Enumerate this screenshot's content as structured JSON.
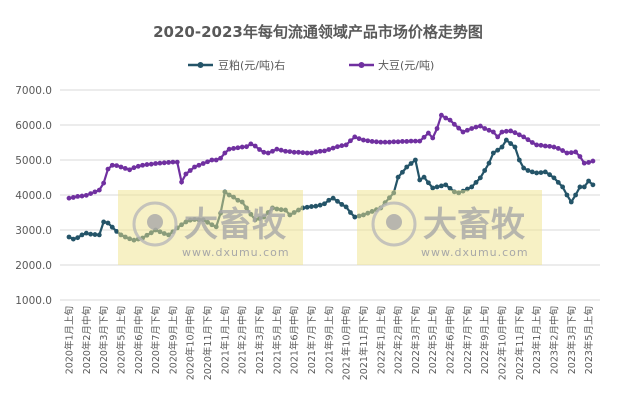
{
  "chart_data": {
    "type": "line",
    "title": "2020-2023年每旬流通领域产品市场价格走势图",
    "ylim": [
      1000,
      7000
    ],
    "y_ticks": [
      "1000.0",
      "2000.0",
      "3000.0",
      "4000.0",
      "5000.0",
      "6000.0",
      "7000.0"
    ],
    "y_tick_values": [
      1000,
      2000,
      3000,
      4000,
      5000,
      6000,
      7000
    ],
    "grid": true,
    "legend_position": "top",
    "x_tick_labels": [
      "2020年1月上旬",
      "2020年2月中旬",
      "2020年3月下旬",
      "2020年5月上旬",
      "2020年6月中旬",
      "2020年7月下旬",
      "2020年9月上旬",
      "2020年10月中旬",
      "2020年11月下旬",
      "2021年1月上旬",
      "2021年2月中旬",
      "2021年3月下旬",
      "2021年5月上旬",
      "2021年6月中旬",
      "2021年7月下旬",
      "2021年9月上旬",
      "2021年10月中旬",
      "2021年11月下旬",
      "2022年1月上旬",
      "2022年2月中旬",
      "2022年3月下旬",
      "2022年5月上旬",
      "2022年6月中旬",
      "2022年7月下旬",
      "2022年9月上旬",
      "2022年10月中旬",
      "2022年11月下旬",
      "2023年1月上旬",
      "2023年2月中旬",
      "2023年3月下旬",
      "2023年5月上旬"
    ],
    "series": [
      {
        "name": "豆粕(元/吨)右",
        "color": "#245468",
        "values": [
          2800,
          2740,
          2780,
          2860,
          2910,
          2880,
          2870,
          2860,
          3230,
          3200,
          3080,
          2960,
          2860,
          2800,
          2750,
          2710,
          2740,
          2770,
          2850,
          2920,
          3000,
          2950,
          2900,
          2860,
          2950,
          3060,
          3150,
          3230,
          3280,
          3300,
          3290,
          3290,
          3220,
          3150,
          3090,
          3480,
          4090,
          4000,
          3940,
          3850,
          3800,
          3630,
          3450,
          3290,
          3330,
          3370,
          3500,
          3630,
          3600,
          3580,
          3570,
          3430,
          3500,
          3570,
          3630,
          3650,
          3670,
          3680,
          3710,
          3750,
          3850,
          3910,
          3820,
          3730,
          3660,
          3500,
          3370,
          3400,
          3430,
          3480,
          3530,
          3580,
          3630,
          3780,
          3920,
          4060,
          4510,
          4650,
          4800,
          4900,
          5000,
          4430,
          4510,
          4350,
          4200,
          4230,
          4260,
          4290,
          4190,
          4090,
          4060,
          4110,
          4170,
          4230,
          4360,
          4490,
          4700,
          4910,
          5200,
          5280,
          5370,
          5570,
          5470,
          5370,
          5000,
          4770,
          4700,
          4660,
          4630,
          4640,
          4660,
          4580,
          4490,
          4360,
          4230,
          4000,
          3800,
          4000,
          4230,
          4230,
          4400,
          4290
        ]
      },
      {
        "name": "大豆(元/吨)",
        "color": "#7030a0",
        "values": [
          3910,
          3930,
          3960,
          3970,
          3990,
          4040,
          4090,
          4140,
          4340,
          4740,
          4850,
          4840,
          4800,
          4760,
          4720,
          4780,
          4820,
          4850,
          4870,
          4880,
          4900,
          4910,
          4920,
          4930,
          4940,
          4940,
          4370,
          4600,
          4700,
          4800,
          4850,
          4900,
          4950,
          5000,
          5000,
          5050,
          5200,
          5310,
          5330,
          5350,
          5370,
          5380,
          5460,
          5400,
          5300,
          5220,
          5200,
          5250,
          5310,
          5280,
          5250,
          5240,
          5220,
          5220,
          5210,
          5200,
          5200,
          5230,
          5250,
          5260,
          5300,
          5340,
          5380,
          5410,
          5430,
          5550,
          5660,
          5610,
          5570,
          5550,
          5530,
          5520,
          5510,
          5510,
          5510,
          5520,
          5520,
          5530,
          5530,
          5540,
          5540,
          5540,
          5650,
          5770,
          5630,
          5900,
          6280,
          6200,
          6140,
          6020,
          5910,
          5800,
          5850,
          5900,
          5940,
          5970,
          5900,
          5850,
          5800,
          5660,
          5800,
          5820,
          5830,
          5780,
          5720,
          5660,
          5580,
          5500,
          5430,
          5420,
          5400,
          5390,
          5370,
          5330,
          5270,
          5200,
          5210,
          5230,
          5100,
          4910,
          4930,
          4970
        ]
      }
    ]
  },
  "watermark": {
    "logo_text": "大畜牧",
    "url": "www.dxumu.com"
  }
}
